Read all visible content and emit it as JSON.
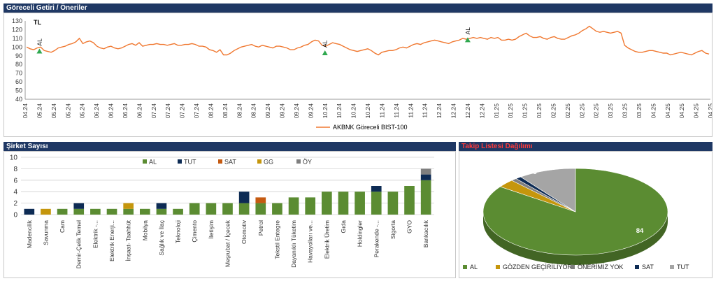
{
  "headers": {
    "top": "Göreceli Getiri / Öneriler",
    "bottom_left": "Şirket Sayısı",
    "bottom_right": "Takip Listesi Dağılımı"
  },
  "colors": {
    "header_bg": "#1f3864",
    "line": "#f07830",
    "al": "#5b8c32",
    "tut": "#0d2b54",
    "sat": "#c55a11",
    "gg": "#c5960c",
    "oy": "#7f7f7f",
    "pie_tut": "#a5a5a5",
    "marker": "#2fa84f",
    "red_title": "#ff0000"
  },
  "chart_data": [
    {
      "type": "line",
      "unit_label": "TL",
      "yticks": [
        "130",
        "120",
        "110",
        "100",
        "90",
        "80",
        "70",
        "60",
        "50",
        "40"
      ],
      "ylim": [
        40,
        130
      ],
      "x_labels": [
        "04.24",
        "05.24",
        "05.24",
        "05.24",
        "05.24",
        "06.24",
        "06.24",
        "06.24",
        "06.24",
        "07.24",
        "07.24",
        "07.24",
        "07.24",
        "08.24",
        "08.24",
        "08.24",
        "08.24",
        "09.24",
        "09.24",
        "09.24",
        "09.24",
        "10.24",
        "10.24",
        "10.24",
        "10.24",
        "11.24",
        "11.24",
        "11.24",
        "11.24",
        "12.24",
        "12.24",
        "12.24",
        "12.24",
        "01.25",
        "01.25",
        "01.25",
        "01.25",
        "02.25",
        "02.25",
        "02.25",
        "02.25",
        "03.25",
        "03.25",
        "03.25",
        "04.25",
        "04.25",
        "04.25",
        "04.25",
        "04.25"
      ],
      "series": [
        {
          "name": "AKBNK Göreceli BIST-100",
          "values": [
            100,
            98,
            97,
            99,
            100,
            96,
            95,
            94,
            96,
            99,
            100,
            101,
            103,
            104,
            106,
            110,
            104,
            106,
            107,
            105,
            101,
            99,
            98,
            100,
            101,
            99,
            98,
            99,
            101,
            103,
            104,
            102,
            105,
            101,
            102,
            103,
            103,
            104,
            103,
            103,
            102,
            103,
            104,
            102,
            102,
            103,
            103,
            104,
            103,
            101,
            101,
            100,
            97,
            96,
            94,
            97,
            91,
            91,
            93,
            96,
            98,
            100,
            101,
            102,
            103,
            101,
            100,
            102,
            101,
            100,
            99,
            101,
            101,
            100,
            99,
            97,
            97,
            99,
            100,
            102,
            103,
            106,
            108,
            107,
            102,
            101,
            103,
            105,
            104,
            103,
            101,
            99,
            97,
            96,
            95,
            96,
            97,
            98,
            96,
            93,
            91,
            94,
            95,
            96,
            96,
            97,
            99,
            100,
            99,
            101,
            103,
            104,
            103,
            105,
            106,
            107,
            108,
            107,
            106,
            105,
            104,
            106,
            107,
            108,
            110,
            109,
            110,
            111,
            110,
            111,
            110,
            109,
            111,
            110,
            111,
            108,
            108,
            109,
            108,
            109,
            112,
            114,
            116,
            113,
            111,
            111,
            112,
            110,
            109,
            111,
            112,
            110,
            109,
            109,
            111,
            113,
            114,
            116,
            119,
            121,
            124,
            121,
            118,
            117,
            118,
            117,
            116,
            117,
            118,
            116,
            102,
            99,
            97,
            95,
            94,
            94,
            95,
            96,
            96,
            95,
            94,
            93,
            93,
            91,
            92,
            93,
            94,
            93,
            92,
            91,
            93,
            95,
            96,
            93,
            92
          ]
        }
      ],
      "markers": [
        {
          "label": "AL",
          "x_index": 1,
          "value": 95
        },
        {
          "label": "AL",
          "x_index": 21,
          "value": 93
        },
        {
          "label": "AL",
          "x_index": 31,
          "value": 108
        }
      ]
    },
    {
      "type": "bar",
      "stacked": true,
      "ylim": [
        0,
        10
      ],
      "yticks": [
        "10",
        "8",
        "6",
        "4",
        "2",
        "0"
      ],
      "categories": [
        "Madencilik",
        "Savunma",
        "Cam",
        "Demir-Çelik Temel",
        "Elektrik -...",
        "Elektrik Enerji...",
        "İnşaat- Taahhüt",
        "Mobilya",
        "Sağlık ve İlaç",
        "Teknoloji",
        "Çimento",
        "İletişim",
        "Meşrubat / İçecek",
        "Otomotiv",
        "Petrol",
        "Tekstil Entegre",
        "Dayanıklı Tüketim",
        "Havayolları ve...",
        "Elektrik Üretim",
        "Gıda",
        "Holdingler",
        "Perakende -...",
        "Sigorta",
        "GYO",
        "Bankacılık"
      ],
      "series": [
        {
          "name": "AL",
          "values": [
            0,
            0,
            1,
            1,
            1,
            1,
            1,
            1,
            1,
            1,
            2,
            2,
            2,
            2,
            2,
            2,
            3,
            3,
            4,
            4,
            4,
            4,
            4,
            5,
            6
          ]
        },
        {
          "name": "TUT",
          "values": [
            1,
            0,
            0,
            1,
            0,
            0,
            0,
            0,
            1,
            0,
            0,
            0,
            0,
            2,
            0,
            0,
            0,
            0,
            0,
            0,
            0,
            1,
            0,
            0,
            1
          ]
        },
        {
          "name": "SAT",
          "values": [
            0,
            0,
            0,
            0,
            0,
            0,
            0,
            0,
            0,
            0,
            0,
            0,
            0,
            0,
            1,
            0,
            0,
            0,
            0,
            0,
            0,
            0,
            0,
            0,
            0
          ]
        },
        {
          "name": "GG",
          "values": [
            0,
            1,
            0,
            0,
            0,
            0,
            1,
            0,
            0,
            0,
            0,
            0,
            0,
            0,
            0,
            0,
            0,
            0,
            0,
            0,
            0,
            0,
            0,
            0,
            0
          ]
        },
        {
          "name": "ÖY",
          "values": [
            0,
            0,
            0,
            0,
            0,
            0,
            0,
            0,
            0,
            0,
            0,
            0,
            0,
            0,
            0,
            0,
            0,
            0,
            0,
            0,
            0,
            0,
            0,
            0,
            1
          ]
        }
      ],
      "legend": [
        "AL",
        "TUT",
        "SAT",
        "GG",
        "ÖY"
      ],
      "legend_position": "top"
    },
    {
      "type": "pie",
      "slices": [
        {
          "name": "AL",
          "value": 84
        },
        {
          "name": "GÖZDEN GEÇİRİLİYOR",
          "value": 3
        },
        {
          "name": "ÖNERİMİZ YOK",
          "value": 1
        },
        {
          "name": "SAT",
          "value": 1
        },
        {
          "name": "TUT",
          "value": 10
        }
      ],
      "legend_position": "bottom"
    }
  ]
}
